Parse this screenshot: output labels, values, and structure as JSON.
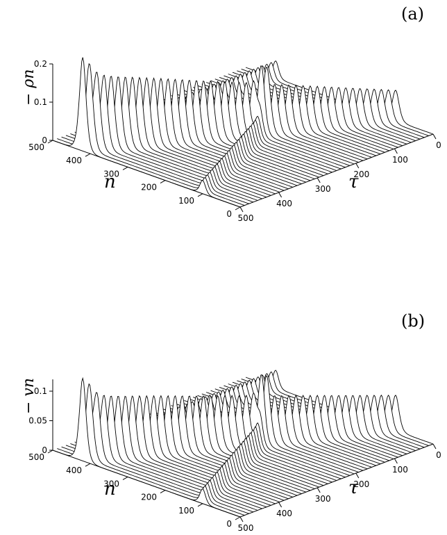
{
  "chart_data": [
    {
      "type": "surface-waterfall",
      "panel_label": "(a)",
      "zlabel": "− ρn",
      "xlabel": "n",
      "ylabel": "τ",
      "n_ticks": [
        "500",
        "400",
        "300",
        "200",
        "100",
        "0"
      ],
      "n_tick_values": [
        500,
        400,
        300,
        200,
        100,
        0
      ],
      "tau_ticks": [
        "0",
        "100",
        "200",
        "300",
        "400",
        "500"
      ],
      "tau_tick_values": [
        0,
        100,
        200,
        300,
        400,
        500
      ],
      "z_ticks": [
        "0",
        "0.1",
        "0.2"
      ],
      "z_tick_values": [
        0,
        0.1,
        0.2
      ],
      "xlim": [
        0,
        500
      ],
      "ylim": [
        0,
        500
      ],
      "zlim": [
        0,
        0.2
      ],
      "pulses": [
        {
          "n_start": 100,
          "n_end": 420,
          "amplitude_start": 0.08,
          "amplitude_end": 0.2,
          "width": 12
        },
        {
          "n_start": 420,
          "n_end": 420,
          "amplitude_start": 0.045,
          "amplitude_end": 0.045,
          "width": 10,
          "type": "stationary"
        }
      ],
      "secondary": {
        "n_start": 100,
        "n_end": 240,
        "amplitude_start": 0.035,
        "amplitude_end": 0.06,
        "tau_from": 200,
        "tau_to": 500
      }
    },
    {
      "type": "surface-waterfall",
      "panel_label": "(b)",
      "zlabel": "− vn",
      "xlabel": "n",
      "ylabel": "τ",
      "n_ticks": [
        "500",
        "400",
        "300",
        "200",
        "100",
        "0"
      ],
      "n_tick_values": [
        500,
        400,
        300,
        200,
        100,
        0
      ],
      "tau_ticks": [
        "0",
        "100",
        "200",
        "300",
        "400",
        "500"
      ],
      "tau_tick_values": [
        0,
        100,
        200,
        300,
        400,
        500
      ],
      "z_ticks": [
        "0",
        "0.05",
        "0.1"
      ],
      "z_tick_values": [
        0,
        0.05,
        0.1
      ],
      "xlim": [
        0,
        500
      ],
      "ylim": [
        0,
        500
      ],
      "zlim": [
        0,
        0.12
      ],
      "pulses": [
        {
          "n_start": 100,
          "n_end": 420,
          "amplitude_start": 0.06,
          "amplitude_end": 0.11,
          "width": 12
        },
        {
          "n_start": 420,
          "n_end": 420,
          "amplitude_start": 0.03,
          "amplitude_end": 0.03,
          "width": 10,
          "type": "stationary"
        }
      ],
      "secondary": {
        "n_start": 100,
        "n_end": 240,
        "amplitude_start": 0.025,
        "amplitude_end": 0.045,
        "tau_from": 200,
        "tau_to": 500
      }
    }
  ]
}
